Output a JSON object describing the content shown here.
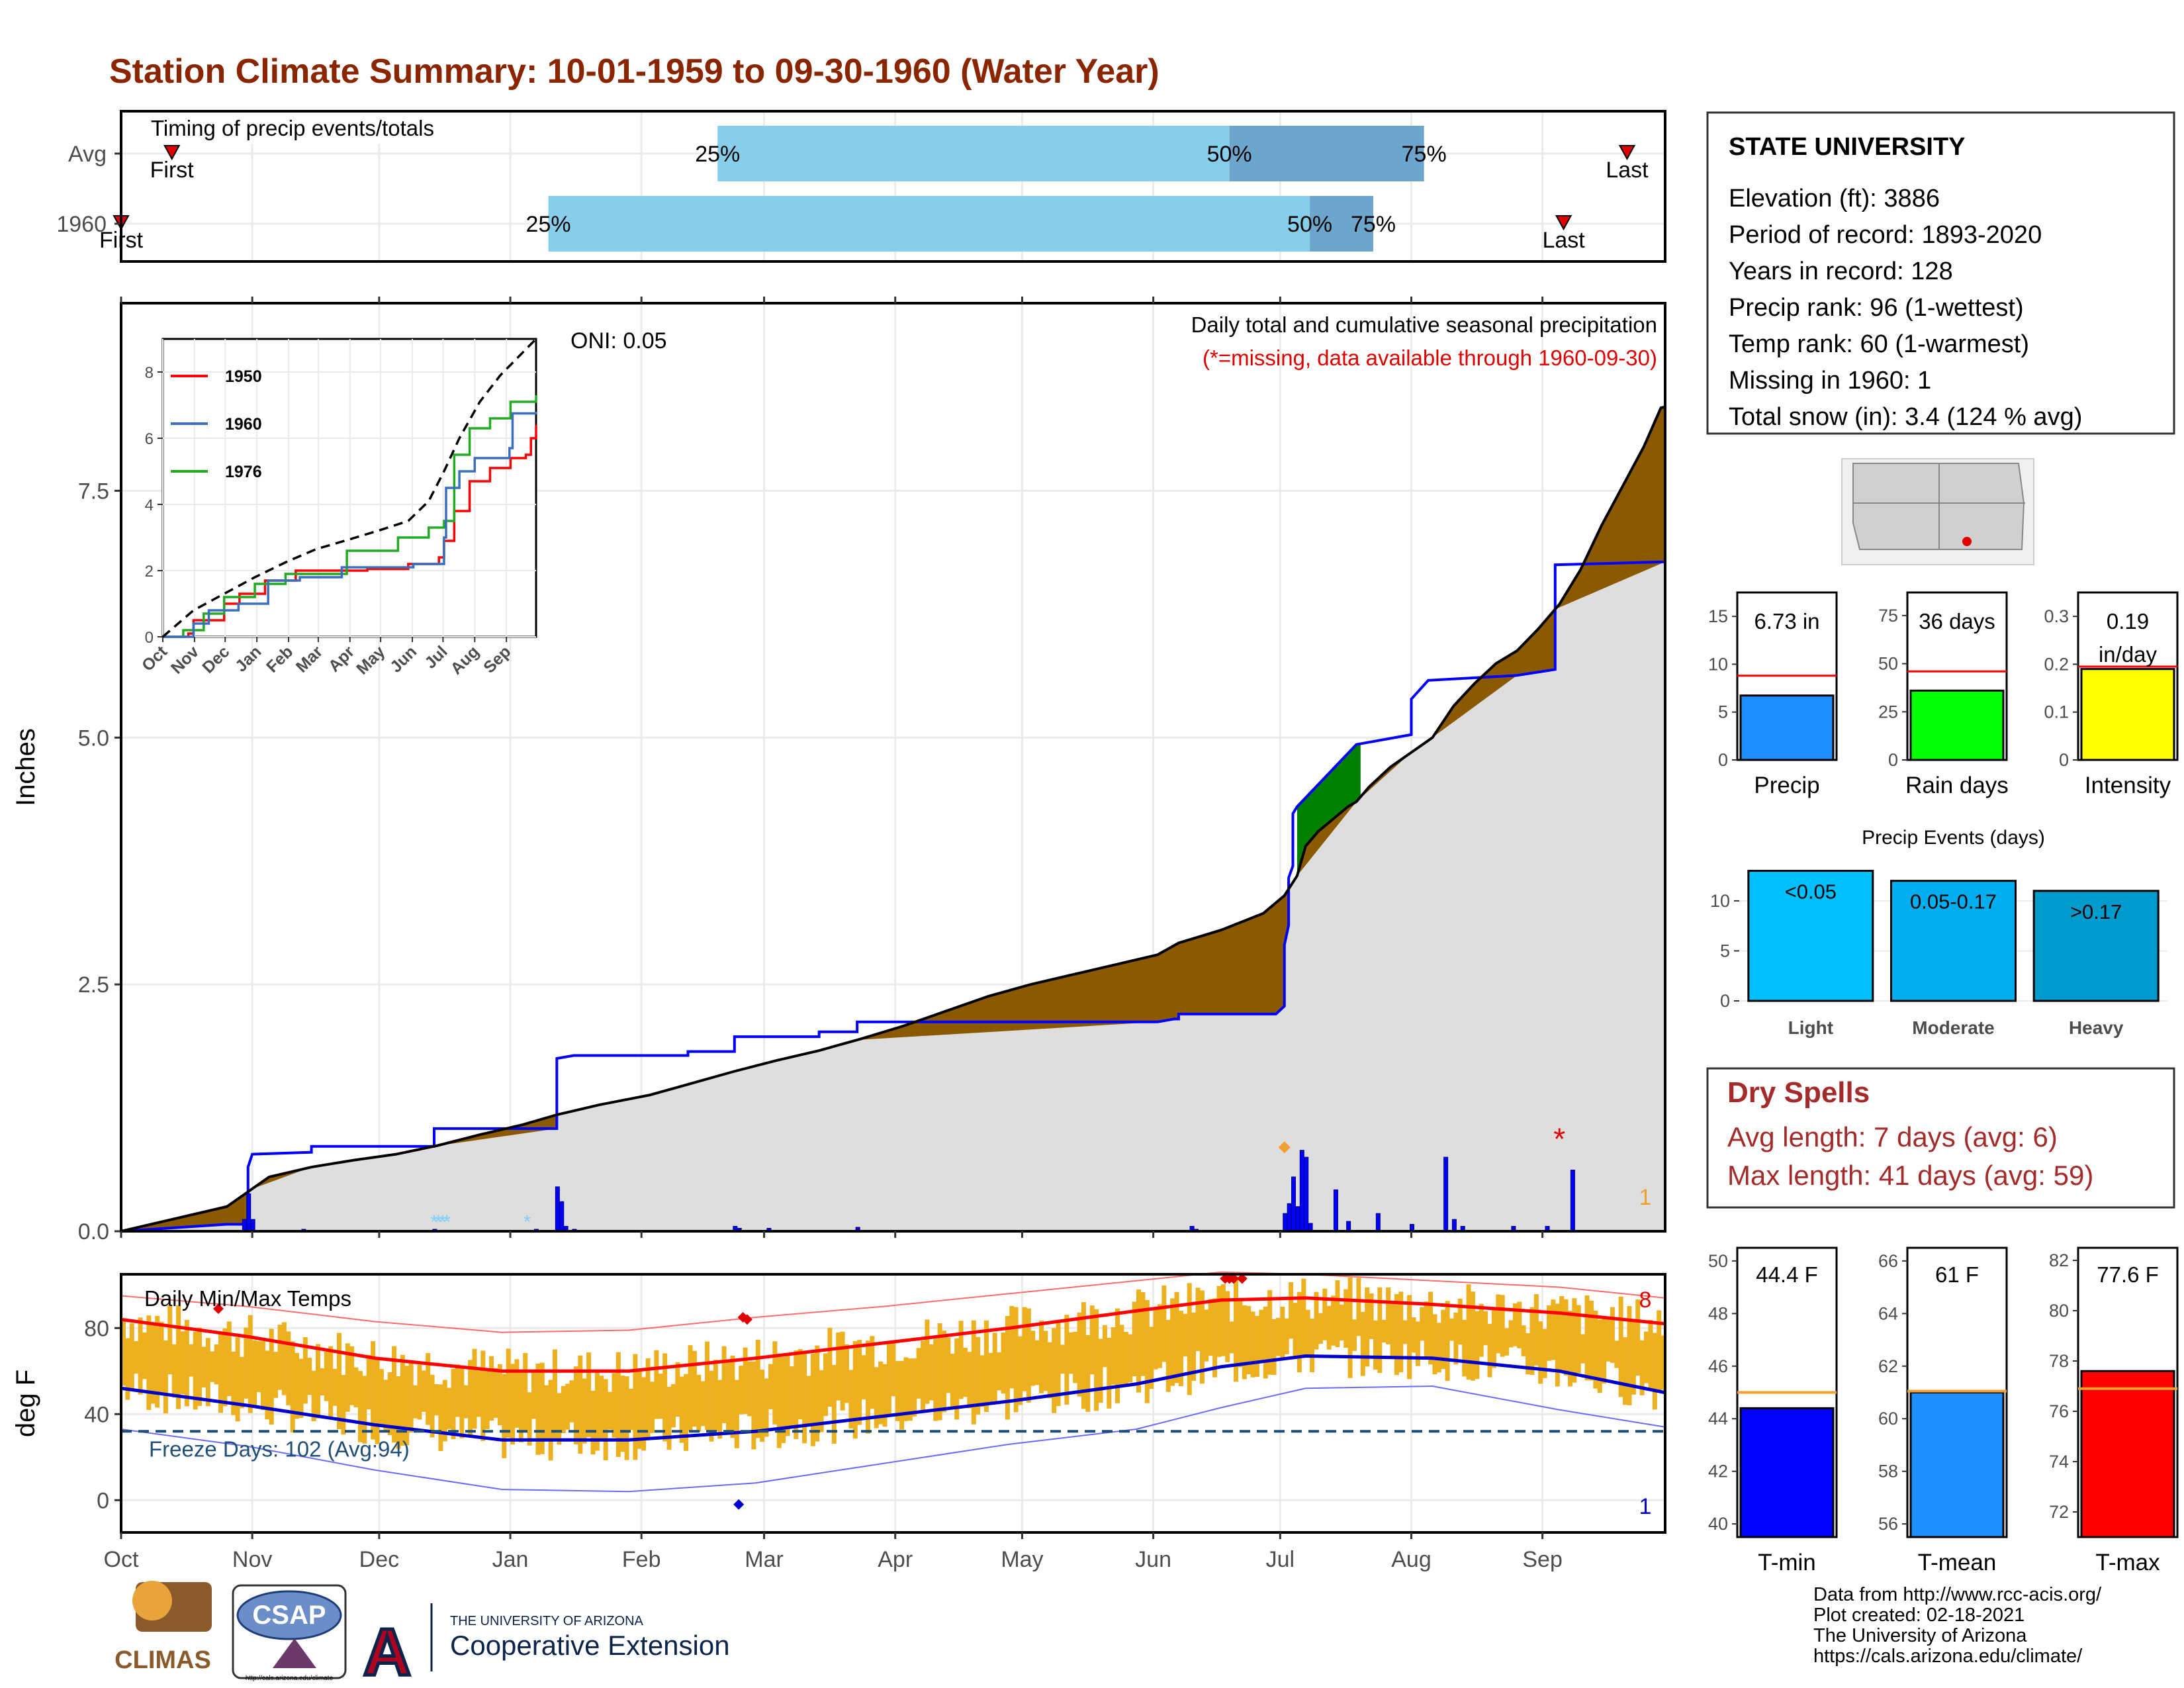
{
  "title": "Station Climate Summary: 10-01-1959 to 09-30-1960 (Water Year)",
  "colors": {
    "title": "#8B2500",
    "brown": "#8B5A00",
    "normal_fill": "#DEDEDE",
    "precip_line": "#0000FF",
    "green": "#008000",
    "temp_bar": "#EDB120",
    "max_line": "#FF0000",
    "min_line": "#0000CD",
    "freeze_line": "#1F4E79",
    "pct_light": "#87CEEB",
    "pct_dark": "#6CA6CD"
  },
  "months": [
    "Oct",
    "Nov",
    "Dec",
    "Jan",
    "Feb",
    "Mar",
    "Apr",
    "May",
    "Jun",
    "Jul",
    "Aug",
    "Sep"
  ],
  "timing": {
    "label": "Timing of precip events/totals",
    "rows": [
      {
        "name": "Avg",
        "first_label": "First",
        "last_label": "Last",
        "first_day": 12,
        "last_day": 356,
        "p25": 141,
        "p50": 262,
        "p75": 308,
        "l25": "25%",
        "l50": "50%",
        "l75": "75%"
      },
      {
        "name": "1960",
        "first_label": "First",
        "last_label": "Last",
        "first_day": 0,
        "last_day": 341,
        "p25": 101,
        "p50": 281,
        "p75": 296,
        "l25": "25%",
        "l50": "50%",
        "l75": "75%"
      }
    ]
  },
  "main": {
    "ylabel": "Inches",
    "yticks": [
      0,
      2.5,
      5,
      7.5
    ],
    "ylim": [
      0,
      9.4
    ],
    "subtitle": "Daily total and cumulative seasonal precipitation",
    "missing_note": "(*=missing, data available through 1960-09-30)",
    "oni": "ONI: 0.05",
    "missing_count": "1",
    "cum_normal": [
      [
        0,
        0
      ],
      [
        25,
        0.07
      ],
      [
        30,
        0.07
      ],
      [
        30,
        0.65
      ],
      [
        31,
        0.78
      ],
      [
        45,
        0.8
      ],
      [
        45,
        0.86
      ],
      [
        74,
        0.86
      ],
      [
        74,
        1.04
      ],
      [
        103,
        1.04
      ],
      [
        103,
        1.75
      ],
      [
        107,
        1.78
      ],
      [
        134,
        1.78
      ],
      [
        134,
        1.82
      ],
      [
        145,
        1.82
      ],
      [
        145,
        1.97
      ],
      [
        165,
        1.97
      ],
      [
        165,
        2.02
      ],
      [
        174,
        2.02
      ],
      [
        174,
        2.12
      ],
      [
        245,
        2.12
      ],
      [
        249,
        2.15
      ],
      [
        250,
        2.15
      ],
      [
        250,
        2.2
      ],
      [
        273,
        2.2
      ],
      [
        275,
        2.28
      ],
      [
        275,
        2.9
      ],
      [
        276,
        3.1
      ],
      [
        276,
        3.58
      ],
      [
        277,
        3.7
      ],
      [
        277,
        4.23
      ],
      [
        278,
        4.3
      ],
      [
        292,
        4.93
      ],
      [
        305,
        5.03
      ],
      [
        305,
        5.39
      ],
      [
        309,
        5.58
      ],
      [
        330,
        5.63
      ],
      [
        339,
        5.69
      ],
      [
        339,
        6.75
      ],
      [
        365,
        6.78
      ]
    ],
    "cum_1960": [
      [
        0,
        0
      ],
      [
        10,
        0.1
      ],
      [
        25,
        0.25
      ],
      [
        30,
        0.4
      ],
      [
        35,
        0.55
      ],
      [
        45,
        0.65
      ],
      [
        55,
        0.72
      ],
      [
        65,
        0.78
      ],
      [
        75,
        0.87
      ],
      [
        85,
        0.98
      ],
      [
        95,
        1.08
      ],
      [
        103,
        1.18
      ],
      [
        113,
        1.28
      ],
      [
        125,
        1.38
      ],
      [
        135,
        1.5
      ],
      [
        145,
        1.62
      ],
      [
        155,
        1.73
      ],
      [
        165,
        1.83
      ],
      [
        175,
        1.95
      ],
      [
        185,
        2.08
      ],
      [
        195,
        2.23
      ],
      [
        205,
        2.38
      ],
      [
        215,
        2.5
      ],
      [
        225,
        2.6
      ],
      [
        235,
        2.7
      ],
      [
        245,
        2.8
      ],
      [
        250,
        2.92
      ],
      [
        260,
        3.05
      ],
      [
        270,
        3.22
      ],
      [
        275,
        3.4
      ],
      [
        278,
        3.6
      ],
      [
        280,
        3.9
      ],
      [
        283,
        4.05
      ],
      [
        290,
        4.3
      ],
      [
        292,
        4.35
      ],
      [
        295,
        4.5
      ],
      [
        300,
        4.7
      ],
      [
        305,
        4.85
      ],
      [
        310,
        5.0
      ],
      [
        315,
        5.32
      ],
      [
        320,
        5.55
      ],
      [
        325,
        5.75
      ],
      [
        330,
        5.88
      ],
      [
        335,
        6.1
      ],
      [
        340,
        6.35
      ],
      [
        345,
        6.7
      ],
      [
        350,
        7.15
      ],
      [
        355,
        7.55
      ],
      [
        360,
        7.95
      ],
      [
        364,
        8.34
      ],
      [
        365,
        8.35
      ]
    ],
    "daily_bars": [
      [
        29,
        0.12
      ],
      [
        30,
        0.38
      ],
      [
        31,
        0.12
      ],
      [
        43,
        0.02
      ],
      [
        74,
        0.02
      ],
      [
        91,
        0.01
      ],
      [
        98,
        0.02
      ],
      [
        103,
        0.45
      ],
      [
        104,
        0.3
      ],
      [
        105,
        0.05
      ],
      [
        107,
        0.02
      ],
      [
        115,
        0.01
      ],
      [
        145,
        0.05
      ],
      [
        146,
        0.03
      ],
      [
        153,
        0.03
      ],
      [
        174,
        0.04
      ],
      [
        201,
        0.01
      ],
      [
        253,
        0.05
      ],
      [
        254,
        0.02
      ],
      [
        275,
        0.18
      ],
      [
        276,
        0.28
      ],
      [
        277,
        0.55
      ],
      [
        278,
        0.25
      ],
      [
        279,
        0.82
      ],
      [
        280,
        0.75
      ],
      [
        281,
        0.08
      ],
      [
        287,
        0.42
      ],
      [
        290,
        0.1
      ],
      [
        297,
        0.18
      ],
      [
        305,
        0.07
      ],
      [
        313,
        0.75
      ],
      [
        315,
        0.12
      ],
      [
        317,
        0.05
      ],
      [
        329,
        0.05
      ],
      [
        337,
        0.05
      ],
      [
        343,
        0.62
      ]
    ],
    "snow_days": [
      74,
      75,
      76,
      77,
      96
    ],
    "missing_day": 340,
    "diamond": [
      [
        275,
        0.85
      ]
    ]
  },
  "inset": {
    "yticks": [
      0,
      2,
      4,
      6,
      8
    ],
    "ylim": [
      0,
      9
    ],
    "legend": [
      {
        "name": "1950",
        "color": "#FF0000"
      },
      {
        "name": "1960",
        "color": "#3A6FBF"
      },
      {
        "name": "1976",
        "color": "#22AA22"
      }
    ],
    "avg": [
      [
        0,
        0
      ],
      [
        30,
        0.8
      ],
      [
        60,
        1.3
      ],
      [
        90,
        1.8
      ],
      [
        120,
        2.25
      ],
      [
        150,
        2.65
      ],
      [
        180,
        2.92
      ],
      [
        210,
        3.2
      ],
      [
        240,
        3.5
      ],
      [
        260,
        4.1
      ],
      [
        275,
        5.0
      ],
      [
        290,
        6.0
      ],
      [
        310,
        7.1
      ],
      [
        330,
        7.9
      ],
      [
        365,
        9.0
      ]
    ],
    "s1950": [
      [
        0,
        0
      ],
      [
        25,
        0.1
      ],
      [
        30,
        0.5
      ],
      [
        60,
        1.0
      ],
      [
        75,
        1.3
      ],
      [
        100,
        1.7
      ],
      [
        130,
        2.0
      ],
      [
        160,
        2.0
      ],
      [
        200,
        2.05
      ],
      [
        240,
        2.2
      ],
      [
        270,
        2.4
      ],
      [
        275,
        2.9
      ],
      [
        285,
        3.8
      ],
      [
        300,
        4.7
      ],
      [
        320,
        5.1
      ],
      [
        340,
        5.4
      ],
      [
        355,
        5.5
      ],
      [
        360,
        6.0
      ],
      [
        365,
        6.4
      ]
    ],
    "s1960": [
      [
        0,
        0
      ],
      [
        30,
        0.4
      ],
      [
        45,
        0.8
      ],
      [
        74,
        1.0
      ],
      [
        103,
        1.7
      ],
      [
        134,
        1.8
      ],
      [
        175,
        2.1
      ],
      [
        245,
        2.2
      ],
      [
        275,
        3.0
      ],
      [
        277,
        4.5
      ],
      [
        290,
        5.0
      ],
      [
        305,
        5.4
      ],
      [
        339,
        5.7
      ],
      [
        342,
        6.75
      ],
      [
        365,
        6.8
      ]
    ],
    "s1976": [
      [
        0,
        0
      ],
      [
        20,
        0.2
      ],
      [
        40,
        0.7
      ],
      [
        60,
        1.2
      ],
      [
        90,
        1.6
      ],
      [
        120,
        1.9
      ],
      [
        180,
        2.6
      ],
      [
        230,
        3.0
      ],
      [
        260,
        3.3
      ],
      [
        275,
        3.5
      ],
      [
        285,
        5.5
      ],
      [
        300,
        6.3
      ],
      [
        320,
        6.6
      ],
      [
        340,
        7.1
      ],
      [
        365,
        7.3
      ]
    ]
  },
  "temps": {
    "title": "Daily Min/Max Temps",
    "ylabel": "deg F",
    "yticks": [
      0,
      40,
      80
    ],
    "ylim": [
      -15,
      105
    ],
    "freeze": "Freeze Days: 102 (Avg:94)",
    "freeze_level": 32,
    "max_count": "8",
    "min_count": "1",
    "norm_max": [
      [
        0,
        84
      ],
      [
        30,
        76
      ],
      [
        60,
        66
      ],
      [
        90,
        60
      ],
      [
        120,
        60
      ],
      [
        150,
        66
      ],
      [
        180,
        73
      ],
      [
        210,
        80
      ],
      [
        240,
        88
      ],
      [
        260,
        93
      ],
      [
        280,
        94
      ],
      [
        310,
        91
      ],
      [
        340,
        87
      ],
      [
        365,
        82
      ]
    ],
    "norm_min": [
      [
        0,
        52
      ],
      [
        30,
        44
      ],
      [
        60,
        35
      ],
      [
        90,
        28
      ],
      [
        120,
        28
      ],
      [
        150,
        32
      ],
      [
        180,
        39
      ],
      [
        210,
        46
      ],
      [
        240,
        54
      ],
      [
        260,
        62
      ],
      [
        280,
        67
      ],
      [
        310,
        66
      ],
      [
        340,
        60
      ],
      [
        365,
        50
      ]
    ],
    "rec_max": [
      [
        0,
        95
      ],
      [
        30,
        90
      ],
      [
        60,
        83
      ],
      [
        90,
        78
      ],
      [
        120,
        79
      ],
      [
        150,
        85
      ],
      [
        180,
        90
      ],
      [
        210,
        96
      ],
      [
        240,
        102
      ],
      [
        260,
        106
      ],
      [
        280,
        105
      ],
      [
        310,
        102
      ],
      [
        340,
        99
      ],
      [
        365,
        94
      ]
    ],
    "rec_min": [
      [
        0,
        33
      ],
      [
        30,
        25
      ],
      [
        60,
        14
      ],
      [
        90,
        5
      ],
      [
        120,
        4
      ],
      [
        150,
        8
      ],
      [
        180,
        17
      ],
      [
        210,
        26
      ],
      [
        240,
        33
      ],
      [
        260,
        43
      ],
      [
        280,
        52
      ],
      [
        310,
        53
      ],
      [
        340,
        42
      ],
      [
        365,
        34
      ]
    ],
    "markers_max": [
      [
        23,
        89
      ],
      [
        147,
        85
      ],
      [
        148,
        84
      ],
      [
        261,
        103
      ],
      [
        262,
        103
      ],
      [
        263,
        103
      ],
      [
        265,
        103
      ]
    ],
    "markers_min": [
      [
        146,
        -2
      ]
    ]
  },
  "info": {
    "station": "STATE UNIVERSITY",
    "lines": [
      "Elevation (ft): 3886",
      "Period of record: 1893-2020",
      "Years in record: 128",
      "Precip rank: 96 (1-wettest)",
      "Temp rank: 60 (1-warmest)",
      "Missing in 1960: 1",
      "Total snow (in): 3.4 (124 % avg)"
    ]
  },
  "summary_bars": [
    {
      "label": "Precip",
      "value": 6.73,
      "avg": 8.8,
      "display": "6.73 in",
      "ticks": [
        0,
        5,
        10,
        15
      ],
      "max": 17.5,
      "color": "#1E90FF"
    },
    {
      "label": "Rain days",
      "value": 36,
      "avg": 46,
      "display": "36 days",
      "ticks": [
        0,
        25,
        50,
        75
      ],
      "max": 87,
      "color": "#00FF00"
    },
    {
      "label": "Intensity",
      "value": 0.19,
      "avg": 0.195,
      "display": "0.19",
      "display2": "in/day",
      "ticks": [
        0.0,
        0.1,
        0.2,
        0.3
      ],
      "max": 0.35,
      "color": "#FFFF00"
    }
  ],
  "events": {
    "title": "Precip Events (days)",
    "ticks": [
      0,
      5,
      10
    ],
    "max": 13.5,
    "bars": [
      {
        "cat": "Light",
        "label": "<0.05",
        "value": 13,
        "color": "#00BFFF"
      },
      {
        "cat": "Moderate",
        "label": "0.05-0.17",
        "value": 12,
        "color": "#00AEEF"
      },
      {
        "cat": "Heavy",
        "label": ">0.17",
        "value": 11,
        "color": "#009ACD"
      }
    ]
  },
  "dry": {
    "title": "Dry Spells",
    "avg": "Avg length: 7 days (avg: 6)",
    "max": "Max length: 41 days (avg: 59)"
  },
  "temp_bars": [
    {
      "label": "T-min",
      "value": 44.4,
      "avg": 45.0,
      "display": "44.4 F",
      "ticks": [
        40,
        42,
        44,
        46,
        48,
        50
      ],
      "min": 39.5,
      "max": 50.5,
      "color": "#0000FF"
    },
    {
      "label": "T-mean",
      "value": 61,
      "avg": 61.05,
      "display": "61 F",
      "ticks": [
        56,
        58,
        60,
        62,
        64,
        66
      ],
      "min": 55.5,
      "max": 66.5,
      "color": "#1E90FF"
    },
    {
      "label": "T-max",
      "value": 77.6,
      "avg": 76.9,
      "display": "77.6 F",
      "ticks": [
        72,
        74,
        76,
        78,
        80,
        82
      ],
      "min": 71,
      "max": 82.5,
      "color": "#FF0000"
    }
  ],
  "credits": [
    "Data from http://www.rcc-acis.org/",
    "Plot created: 02-18-2021",
    "The University of Arizona",
    "https://cals.arizona.edu/climate/"
  ],
  "logos": {
    "climas": "CLIMAS",
    "csap": "CSAP",
    "csap_url": "http://cals.arizona.edu/climate",
    "ua_small": "THE UNIVERSITY OF ARIZONA",
    "ua_big": "Cooperative Extension",
    "ua_letter": "A"
  }
}
